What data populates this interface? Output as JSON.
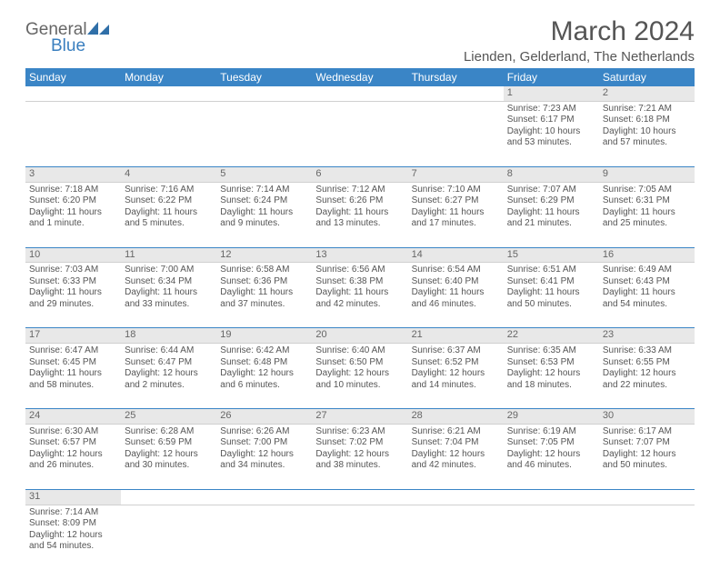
{
  "brand": {
    "line1": "General",
    "line2": "Blue"
  },
  "colors": {
    "header_bg": "#3a85c6",
    "header_text": "#ffffff",
    "daynum_bg": "#e8e8e8",
    "week_divider": "#3a85c6",
    "logo_blue": "#2f6fa8",
    "text": "#555555"
  },
  "title": "March 2024",
  "location": "Lienden, Gelderland, The Netherlands",
  "weekdays": [
    "Sunday",
    "Monday",
    "Tuesday",
    "Wednesday",
    "Thursday",
    "Friday",
    "Saturday"
  ],
  "weeks": [
    {
      "nums": [
        "",
        "",
        "",
        "",
        "",
        "1",
        "2"
      ],
      "cells": [
        null,
        null,
        null,
        null,
        null,
        {
          "sunrise": "Sunrise: 7:23 AM",
          "sunset": "Sunset: 6:17 PM",
          "day": "Daylight: 10 hours and 53 minutes."
        },
        {
          "sunrise": "Sunrise: 7:21 AM",
          "sunset": "Sunset: 6:18 PM",
          "day": "Daylight: 10 hours and 57 minutes."
        }
      ]
    },
    {
      "nums": [
        "3",
        "4",
        "5",
        "6",
        "7",
        "8",
        "9"
      ],
      "cells": [
        {
          "sunrise": "Sunrise: 7:18 AM",
          "sunset": "Sunset: 6:20 PM",
          "day": "Daylight: 11 hours and 1 minute."
        },
        {
          "sunrise": "Sunrise: 7:16 AM",
          "sunset": "Sunset: 6:22 PM",
          "day": "Daylight: 11 hours and 5 minutes."
        },
        {
          "sunrise": "Sunrise: 7:14 AM",
          "sunset": "Sunset: 6:24 PM",
          "day": "Daylight: 11 hours and 9 minutes."
        },
        {
          "sunrise": "Sunrise: 7:12 AM",
          "sunset": "Sunset: 6:26 PM",
          "day": "Daylight: 11 hours and 13 minutes."
        },
        {
          "sunrise": "Sunrise: 7:10 AM",
          "sunset": "Sunset: 6:27 PM",
          "day": "Daylight: 11 hours and 17 minutes."
        },
        {
          "sunrise": "Sunrise: 7:07 AM",
          "sunset": "Sunset: 6:29 PM",
          "day": "Daylight: 11 hours and 21 minutes."
        },
        {
          "sunrise": "Sunrise: 7:05 AM",
          "sunset": "Sunset: 6:31 PM",
          "day": "Daylight: 11 hours and 25 minutes."
        }
      ]
    },
    {
      "nums": [
        "10",
        "11",
        "12",
        "13",
        "14",
        "15",
        "16"
      ],
      "cells": [
        {
          "sunrise": "Sunrise: 7:03 AM",
          "sunset": "Sunset: 6:33 PM",
          "day": "Daylight: 11 hours and 29 minutes."
        },
        {
          "sunrise": "Sunrise: 7:00 AM",
          "sunset": "Sunset: 6:34 PM",
          "day": "Daylight: 11 hours and 33 minutes."
        },
        {
          "sunrise": "Sunrise: 6:58 AM",
          "sunset": "Sunset: 6:36 PM",
          "day": "Daylight: 11 hours and 37 minutes."
        },
        {
          "sunrise": "Sunrise: 6:56 AM",
          "sunset": "Sunset: 6:38 PM",
          "day": "Daylight: 11 hours and 42 minutes."
        },
        {
          "sunrise": "Sunrise: 6:54 AM",
          "sunset": "Sunset: 6:40 PM",
          "day": "Daylight: 11 hours and 46 minutes."
        },
        {
          "sunrise": "Sunrise: 6:51 AM",
          "sunset": "Sunset: 6:41 PM",
          "day": "Daylight: 11 hours and 50 minutes."
        },
        {
          "sunrise": "Sunrise: 6:49 AM",
          "sunset": "Sunset: 6:43 PM",
          "day": "Daylight: 11 hours and 54 minutes."
        }
      ]
    },
    {
      "nums": [
        "17",
        "18",
        "19",
        "20",
        "21",
        "22",
        "23"
      ],
      "cells": [
        {
          "sunrise": "Sunrise: 6:47 AM",
          "sunset": "Sunset: 6:45 PM",
          "day": "Daylight: 11 hours and 58 minutes."
        },
        {
          "sunrise": "Sunrise: 6:44 AM",
          "sunset": "Sunset: 6:47 PM",
          "day": "Daylight: 12 hours and 2 minutes."
        },
        {
          "sunrise": "Sunrise: 6:42 AM",
          "sunset": "Sunset: 6:48 PM",
          "day": "Daylight: 12 hours and 6 minutes."
        },
        {
          "sunrise": "Sunrise: 6:40 AM",
          "sunset": "Sunset: 6:50 PM",
          "day": "Daylight: 12 hours and 10 minutes."
        },
        {
          "sunrise": "Sunrise: 6:37 AM",
          "sunset": "Sunset: 6:52 PM",
          "day": "Daylight: 12 hours and 14 minutes."
        },
        {
          "sunrise": "Sunrise: 6:35 AM",
          "sunset": "Sunset: 6:53 PM",
          "day": "Daylight: 12 hours and 18 minutes."
        },
        {
          "sunrise": "Sunrise: 6:33 AM",
          "sunset": "Sunset: 6:55 PM",
          "day": "Daylight: 12 hours and 22 minutes."
        }
      ]
    },
    {
      "nums": [
        "24",
        "25",
        "26",
        "27",
        "28",
        "29",
        "30"
      ],
      "cells": [
        {
          "sunrise": "Sunrise: 6:30 AM",
          "sunset": "Sunset: 6:57 PM",
          "day": "Daylight: 12 hours and 26 minutes."
        },
        {
          "sunrise": "Sunrise: 6:28 AM",
          "sunset": "Sunset: 6:59 PM",
          "day": "Daylight: 12 hours and 30 minutes."
        },
        {
          "sunrise": "Sunrise: 6:26 AM",
          "sunset": "Sunset: 7:00 PM",
          "day": "Daylight: 12 hours and 34 minutes."
        },
        {
          "sunrise": "Sunrise: 6:23 AM",
          "sunset": "Sunset: 7:02 PM",
          "day": "Daylight: 12 hours and 38 minutes."
        },
        {
          "sunrise": "Sunrise: 6:21 AM",
          "sunset": "Sunset: 7:04 PM",
          "day": "Daylight: 12 hours and 42 minutes."
        },
        {
          "sunrise": "Sunrise: 6:19 AM",
          "sunset": "Sunset: 7:05 PM",
          "day": "Daylight: 12 hours and 46 minutes."
        },
        {
          "sunrise": "Sunrise: 6:17 AM",
          "sunset": "Sunset: 7:07 PM",
          "day": "Daylight: 12 hours and 50 minutes."
        }
      ]
    },
    {
      "nums": [
        "31",
        "",
        "",
        "",
        "",
        "",
        ""
      ],
      "cells": [
        {
          "sunrise": "Sunrise: 7:14 AM",
          "sunset": "Sunset: 8:09 PM",
          "day": "Daylight: 12 hours and 54 minutes."
        },
        null,
        null,
        null,
        null,
        null,
        null
      ]
    }
  ]
}
